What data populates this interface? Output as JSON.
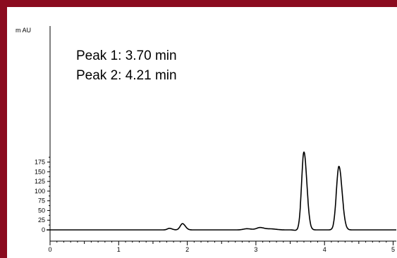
{
  "chart_data": {
    "type": "line",
    "title": "",
    "xlabel": "",
    "ylabel": "m AU",
    "xlim": [
      0,
      5.1
    ],
    "ylim": [
      -12,
      210
    ],
    "x_ticks": [
      "0",
      "1",
      "2",
      "3",
      "4",
      "5"
    ],
    "y_ticks": [
      "0",
      "25",
      "50",
      "75",
      "100",
      "125",
      "150",
      "175"
    ],
    "annotations": [
      "Peak 1: 3.70 min",
      "Peak 2: 4.21 min"
    ],
    "series": [
      {
        "name": "",
        "peaks": [
          {
            "x": 1.74,
            "height": 4,
            "width": 0.03
          },
          {
            "x": 1.93,
            "height": 16,
            "width": 0.033
          },
          {
            "x": 2.87,
            "height": 3,
            "width": 0.05
          },
          {
            "x": 3.06,
            "height": 6,
            "width": 0.05
          },
          {
            "x": 3.22,
            "height": 2.5,
            "width": 0.06
          },
          {
            "x": 3.7,
            "height": 201,
            "width": 0.034
          },
          {
            "x": 4.21,
            "height": 164,
            "width": 0.037
          }
        ]
      }
    ],
    "grid": false,
    "line_color": "#000000",
    "frame_color": "#8b0b1f"
  }
}
